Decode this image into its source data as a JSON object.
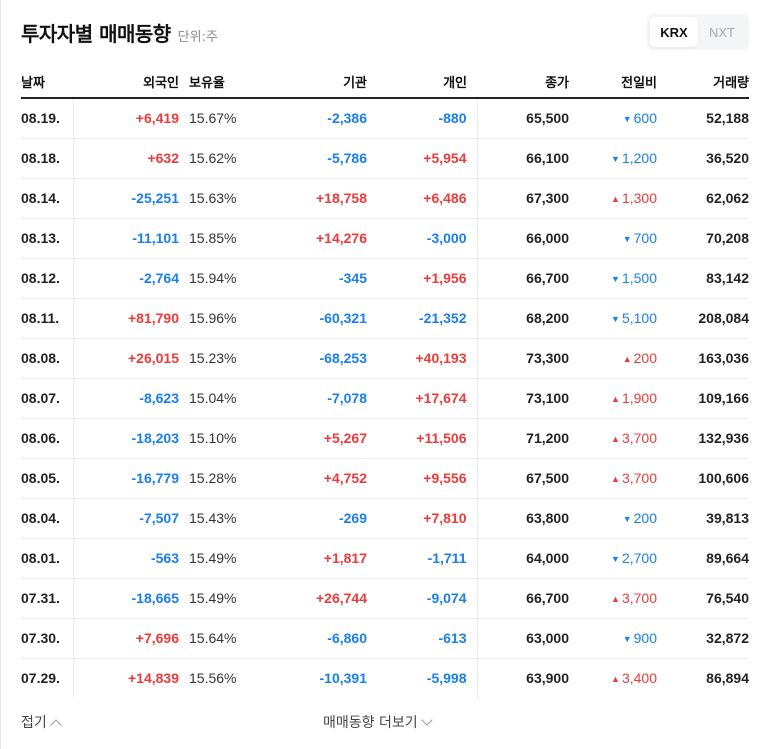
{
  "header": {
    "title": "투자자별 매매동향",
    "unit": "단위:주"
  },
  "market_toggle": {
    "options": [
      {
        "label": "KRX",
        "active": true
      },
      {
        "label": "NXT",
        "active": false
      }
    ]
  },
  "table": {
    "columns": [
      "날짜",
      "외국인",
      "보유율",
      "기관",
      "개인",
      "종가",
      "전일비",
      "거래량"
    ],
    "rows": [
      {
        "date": "08.19.",
        "foreign": "+6,419",
        "ratio": "15.67%",
        "inst": "-2,386",
        "indiv": "-880",
        "close": "65,500",
        "dir": "down",
        "change": "600",
        "volume": "52,188"
      },
      {
        "date": "08.18.",
        "foreign": "+632",
        "ratio": "15.62%",
        "inst": "-5,786",
        "indiv": "+5,954",
        "close": "66,100",
        "dir": "down",
        "change": "1,200",
        "volume": "36,520"
      },
      {
        "date": "08.14.",
        "foreign": "-25,251",
        "ratio": "15.63%",
        "inst": "+18,758",
        "indiv": "+6,486",
        "close": "67,300",
        "dir": "up",
        "change": "1,300",
        "volume": "62,062"
      },
      {
        "date": "08.13.",
        "foreign": "-11,101",
        "ratio": "15.85%",
        "inst": "+14,276",
        "indiv": "-3,000",
        "close": "66,000",
        "dir": "down",
        "change": "700",
        "volume": "70,208"
      },
      {
        "date": "08.12.",
        "foreign": "-2,764",
        "ratio": "15.94%",
        "inst": "-345",
        "indiv": "+1,956",
        "close": "66,700",
        "dir": "down",
        "change": "1,500",
        "volume": "83,142"
      },
      {
        "date": "08.11.",
        "foreign": "+81,790",
        "ratio": "15.96%",
        "inst": "-60,321",
        "indiv": "-21,352",
        "close": "68,200",
        "dir": "down",
        "change": "5,100",
        "volume": "208,084"
      },
      {
        "date": "08.08.",
        "foreign": "+26,015",
        "ratio": "15.23%",
        "inst": "-68,253",
        "indiv": "+40,193",
        "close": "73,300",
        "dir": "up",
        "change": "200",
        "volume": "163,036"
      },
      {
        "date": "08.07.",
        "foreign": "-8,623",
        "ratio": "15.04%",
        "inst": "-7,078",
        "indiv": "+17,674",
        "close": "73,100",
        "dir": "up",
        "change": "1,900",
        "volume": "109,166"
      },
      {
        "date": "08.06.",
        "foreign": "-18,203",
        "ratio": "15.10%",
        "inst": "+5,267",
        "indiv": "+11,506",
        "close": "71,200",
        "dir": "up",
        "change": "3,700",
        "volume": "132,936"
      },
      {
        "date": "08.05.",
        "foreign": "-16,779",
        "ratio": "15.28%",
        "inst": "+4,752",
        "indiv": "+9,556",
        "close": "67,500",
        "dir": "up",
        "change": "3,700",
        "volume": "100,606"
      },
      {
        "date": "08.04.",
        "foreign": "-7,507",
        "ratio": "15.43%",
        "inst": "-269",
        "indiv": "+7,810",
        "close": "63,800",
        "dir": "down",
        "change": "200",
        "volume": "39,813"
      },
      {
        "date": "08.01.",
        "foreign": "-563",
        "ratio": "15.49%",
        "inst": "+1,817",
        "indiv": "-1,711",
        "close": "64,000",
        "dir": "down",
        "change": "2,700",
        "volume": "89,664"
      },
      {
        "date": "07.31.",
        "foreign": "-18,665",
        "ratio": "15.49%",
        "inst": "+26,744",
        "indiv": "-9,074",
        "close": "66,700",
        "dir": "up",
        "change": "3,700",
        "volume": "76,540"
      },
      {
        "date": "07.30.",
        "foreign": "+7,696",
        "ratio": "15.64%",
        "inst": "-6,860",
        "indiv": "-613",
        "close": "63,000",
        "dir": "down",
        "change": "900",
        "volume": "32,872"
      },
      {
        "date": "07.29.",
        "foreign": "+14,839",
        "ratio": "15.56%",
        "inst": "-10,391",
        "indiv": "-5,998",
        "close": "63,900",
        "dir": "up",
        "change": "3,400",
        "volume": "86,894"
      }
    ]
  },
  "footer": {
    "fold_label": "접기",
    "more_label": "매매동향 더보기"
  },
  "icons": {
    "up_arrow": "▲",
    "down_arrow": "▼"
  },
  "colors": {
    "up": "#eb3b3b",
    "down": "#1a7fe8",
    "text": "#111111"
  }
}
